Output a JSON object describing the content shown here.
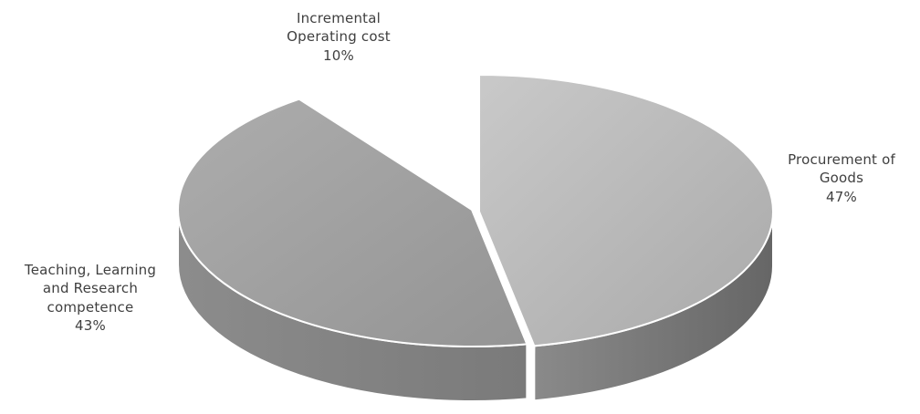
{
  "chart_data": {
    "type": "pie",
    "style": "3d-exploded",
    "slices": [
      {
        "label_lines": [
          "Procurement of",
          "Goods"
        ],
        "value": 47,
        "value_label": "47%",
        "color": "#bcbcbc"
      },
      {
        "label_lines": [
          "Teaching, Learning",
          "and Research",
          "competence"
        ],
        "value": 43,
        "value_label": "43%",
        "color": "#a6a6a6"
      },
      {
        "label_lines": [
          "Incremental",
          "Operating cost"
        ],
        "value": 10,
        "value_label": "10%",
        "color": "#ffffff"
      }
    ]
  }
}
